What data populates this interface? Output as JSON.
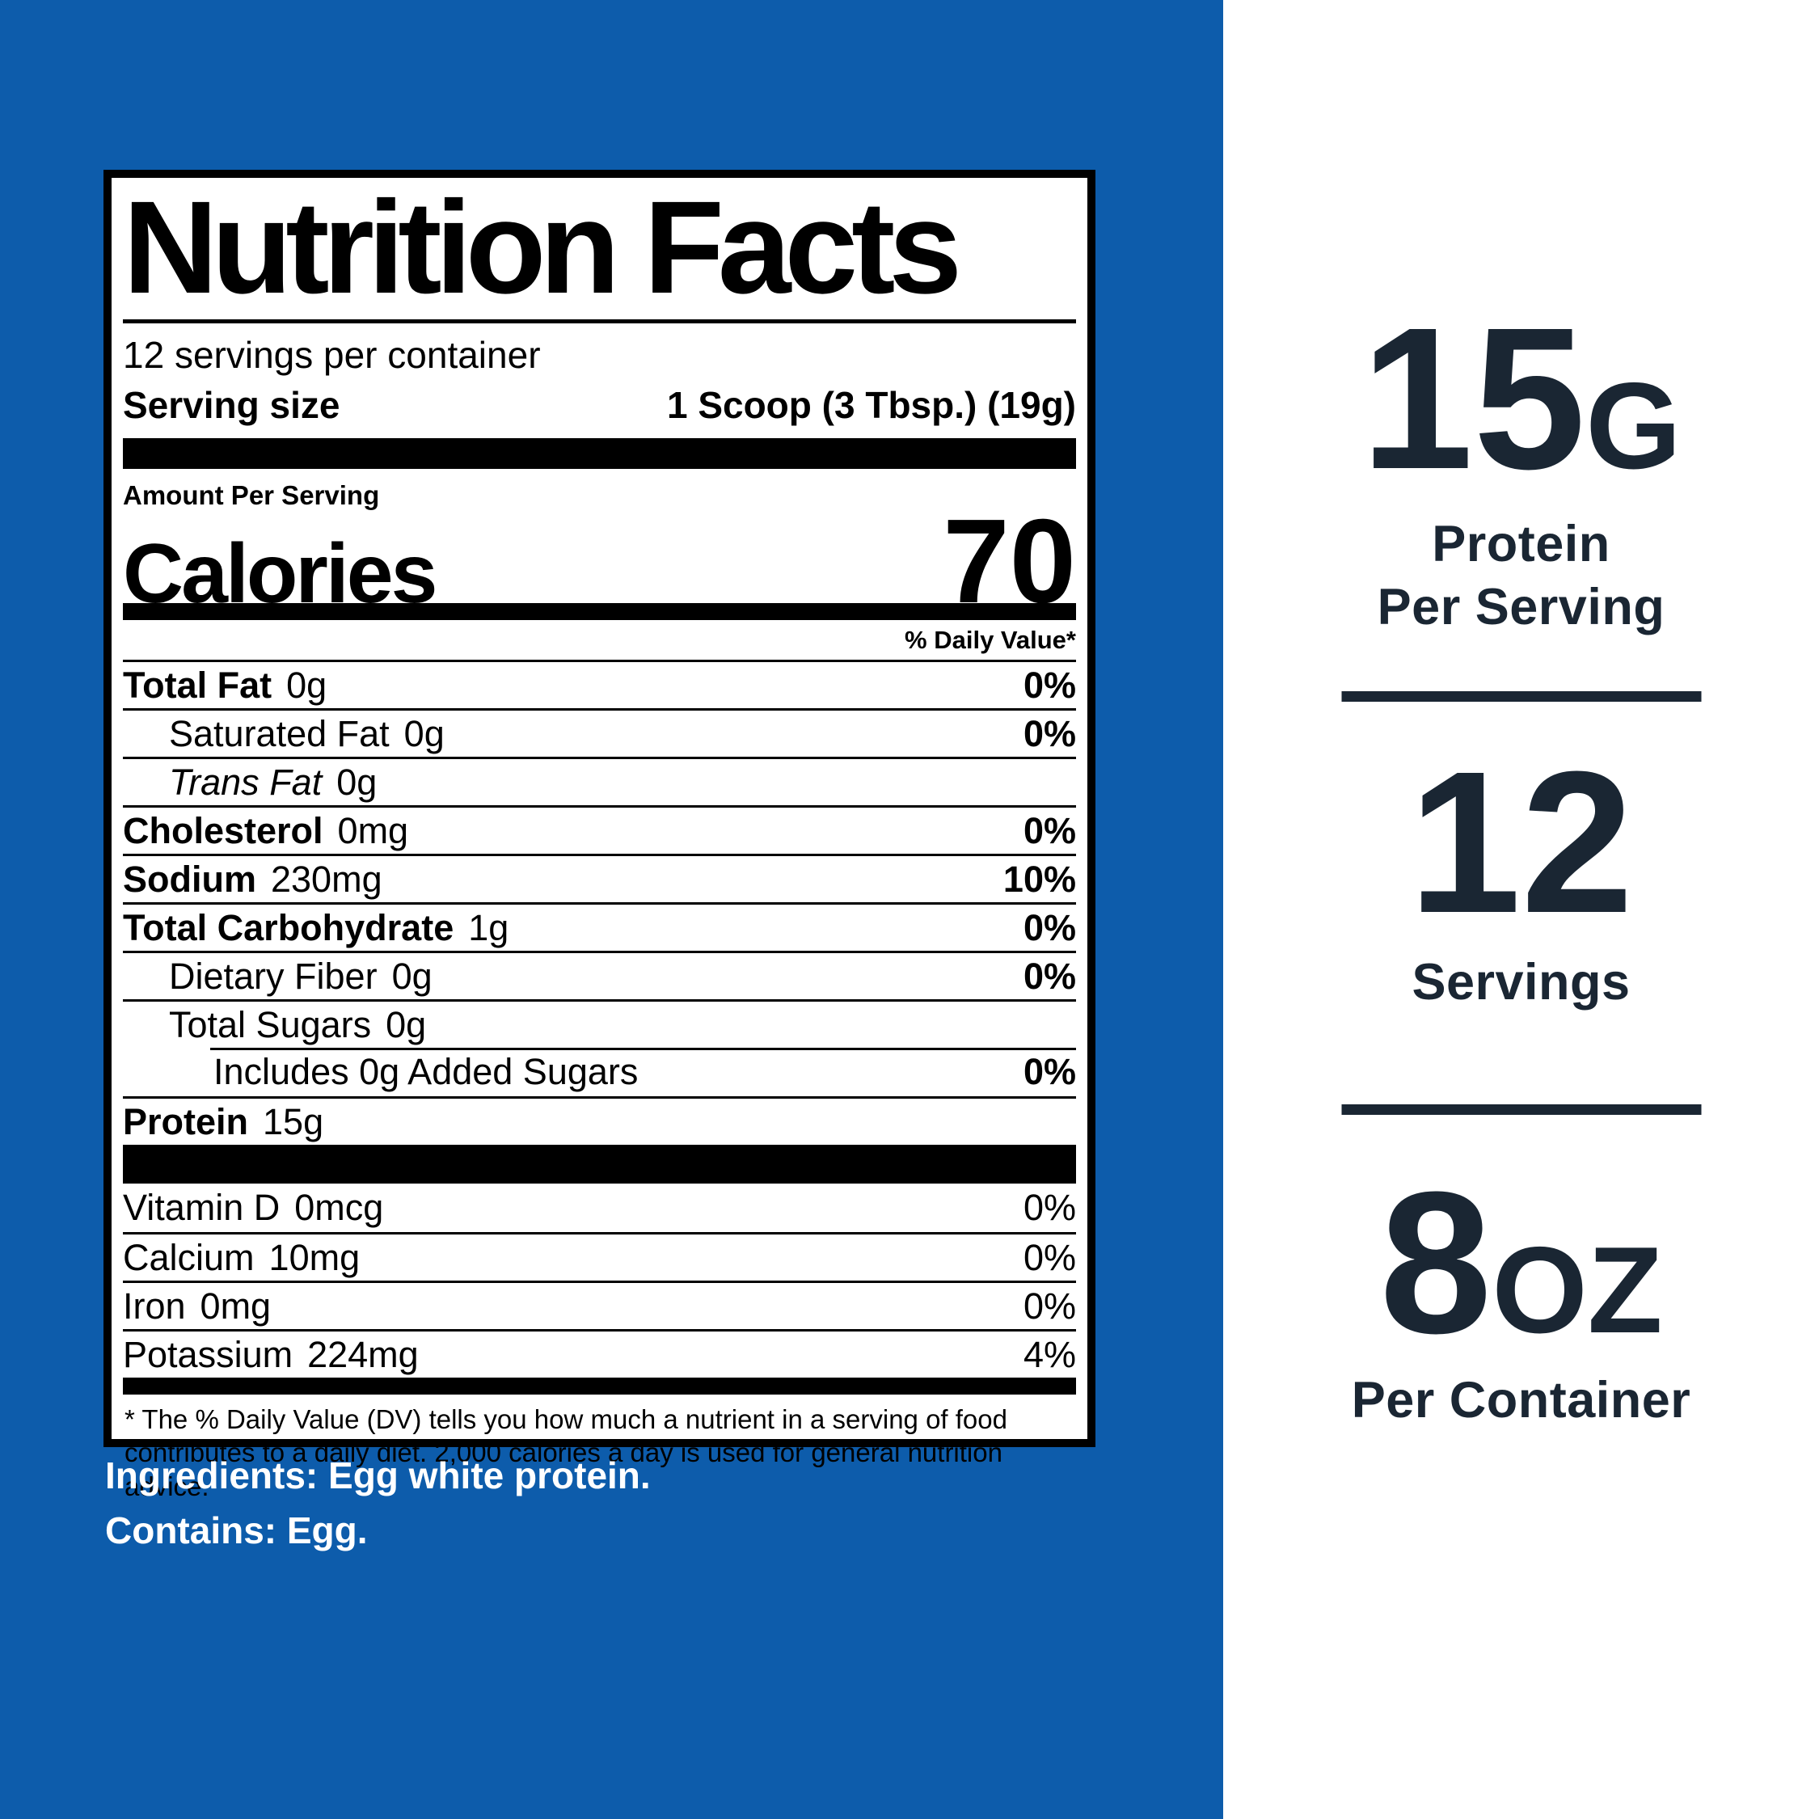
{
  "colors": {
    "background_blue": "#0d5cab",
    "panel_white": "#ffffff",
    "navy_text": "#1a2633",
    "label_black": "#000000"
  },
  "nutrition_label": {
    "title": "Nutrition Facts",
    "servings_per_container": "12 servings per container",
    "serving_size_label": "Serving size",
    "serving_size_value": "1 Scoop (3 Tbsp.) (19g)",
    "amount_per_serving": "Amount Per Serving",
    "calories_label": "Calories",
    "calories_value": "70",
    "daily_value_header": "% Daily Value*",
    "rows": [
      {
        "name": "Total Fat",
        "amount": "0g",
        "dv": "0%"
      },
      {
        "name": "Saturated Fat",
        "amount": "0g",
        "dv": "0%"
      },
      {
        "name": "Trans Fat",
        "amount": "0g",
        "dv": ""
      },
      {
        "name": "Cholesterol",
        "amount": "0mg",
        "dv": "0%"
      },
      {
        "name": "Sodium",
        "amount": "230mg",
        "dv": "10%"
      },
      {
        "name": "Total Carbohydrate",
        "amount": "1g",
        "dv": "0%"
      },
      {
        "name": "Dietary Fiber",
        "amount": "0g",
        "dv": "0%"
      },
      {
        "name": "Total Sugars",
        "amount": "0g",
        "dv": ""
      },
      {
        "name": "Includes 0g Added Sugars",
        "amount": "",
        "dv": "0%"
      },
      {
        "name": "Protein",
        "amount": "15g",
        "dv": ""
      }
    ],
    "vitamins": [
      {
        "name": "Vitamin D",
        "amount": "0mcg",
        "dv": "0%"
      },
      {
        "name": "Calcium",
        "amount": "10mg",
        "dv": "0%"
      },
      {
        "name": "Iron",
        "amount": "0mg",
        "dv": "0%"
      },
      {
        "name": "Potassium",
        "amount": "224mg",
        "dv": "4%"
      }
    ],
    "footnote": "* The % Daily Value (DV) tells you how much a nutrient in a serving of food contributes to a daily diet. 2,000 calories a day is used for general nutrition advice."
  },
  "ingredients_line": "Ingredients: Egg white protein.",
  "contains_line": "Contains: Egg.",
  "highlights": [
    {
      "value": "15",
      "unit": "G",
      "label": "Protein\nPer Serving"
    },
    {
      "value": "12",
      "unit": "",
      "label": "Servings"
    },
    {
      "value": "8",
      "unit": "OZ",
      "label": "Per Container"
    }
  ]
}
